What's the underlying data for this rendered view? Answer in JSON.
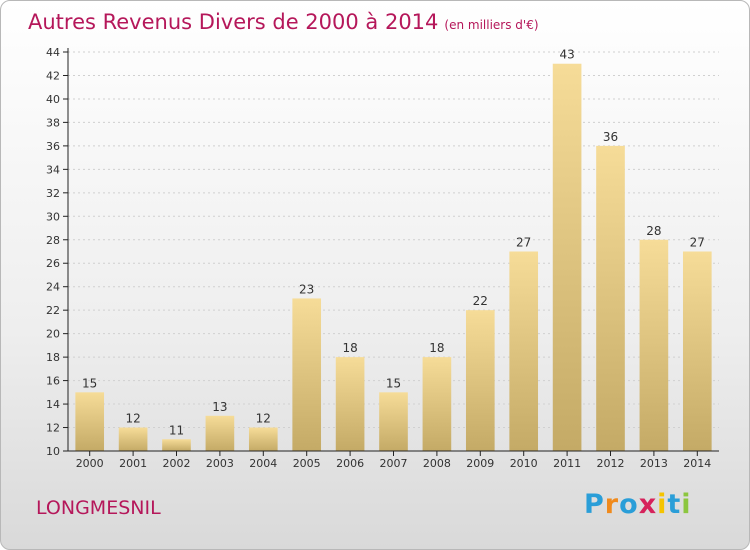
{
  "title": "Autres Revenus Divers de 2000 à 2014",
  "subtitle": "(en milliers d'€)",
  "commune": "LONGMESNIL",
  "logo": {
    "letters": [
      "P",
      "r",
      "o",
      "x",
      "i",
      "t",
      "i"
    ],
    "colors": [
      "#2a9ed8",
      "#f08a1c",
      "#2a9ed8",
      "#d6225b",
      "#f5c400",
      "#2a9ed8",
      "#8cc63f"
    ]
  },
  "colors": {
    "bar_top": "#f6dc98",
    "bar_bottom": "#c4aa66",
    "axis": "#222222",
    "grid": "#d0d0d0"
  },
  "chart_data": {
    "type": "bar",
    "categories": [
      "2000",
      "2001",
      "2002",
      "2003",
      "2004",
      "2005",
      "2006",
      "2007",
      "2008",
      "2009",
      "2010",
      "2011",
      "2012",
      "2013",
      "2014"
    ],
    "values": [
      15,
      12,
      11,
      13,
      12,
      23,
      18,
      15,
      18,
      22,
      27,
      43,
      36,
      28,
      27
    ],
    "ylim": [
      10,
      44
    ],
    "yticks": [
      10,
      12,
      14,
      16,
      18,
      20,
      22,
      24,
      26,
      28,
      30,
      32,
      34,
      36,
      38,
      40,
      42,
      44
    ],
    "grid": true,
    "xlabel": "",
    "ylabel": ""
  }
}
